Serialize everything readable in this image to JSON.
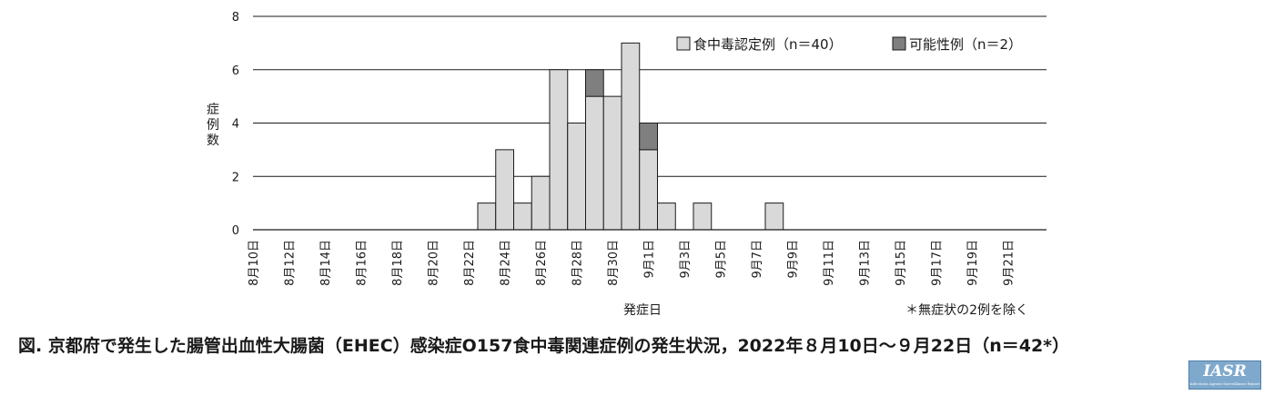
{
  "colors": {
    "confirmed": "#d9d9d9",
    "probable": "#7f7f7f",
    "border": "#1a1a1a",
    "grid": "#1a1a1a"
  },
  "chart_data": {
    "type": "bar",
    "stacked": true,
    "ylabel": "症例数",
    "xlabel": "発症日",
    "note": "＊無症状の2例を除く",
    "ylim": [
      0,
      8
    ],
    "yticks": [
      0,
      2,
      4,
      6,
      8
    ],
    "grid": true,
    "legend_position": "top-right",
    "categories": [
      "8月10日",
      "8月11日",
      "8月12日",
      "8月13日",
      "8月14日",
      "8月15日",
      "8月16日",
      "8月17日",
      "8月18日",
      "8月19日",
      "8月20日",
      "8月21日",
      "8月22日",
      "8月23日",
      "8月24日",
      "8月25日",
      "8月26日",
      "8月27日",
      "8月28日",
      "8月29日",
      "8月30日",
      "8月31日",
      "9月1日",
      "9月2日",
      "9月3日",
      "9月4日",
      "9月5日",
      "9月6日",
      "9月7日",
      "9月8日",
      "9月9日",
      "9月10日",
      "9月11日",
      "9月12日",
      "9月13日",
      "9月14日",
      "9月15日",
      "9月16日",
      "9月17日",
      "9月18日",
      "9月19日",
      "9月20日",
      "9月21日",
      "9月22日"
    ],
    "tick_labels": [
      "8月10日",
      "",
      "8月12日",
      "",
      "8月14日",
      "",
      "8月16日",
      "",
      "8月18日",
      "",
      "8月20日",
      "",
      "8月22日",
      "",
      "8月24日",
      "",
      "8月26日",
      "",
      "8月28日",
      "",
      "8月30日",
      "",
      "9月1日",
      "",
      "9月3日",
      "",
      "9月5日",
      "",
      "9月7日",
      "",
      "9月9日",
      "",
      "9月11日",
      "",
      "9月13日",
      "",
      "9月15日",
      "",
      "9月17日",
      "",
      "9月19日",
      "",
      "9月21日",
      ""
    ],
    "series": [
      {
        "name": "食中毒認定例（n＝40）",
        "values": [
          0,
          0,
          0,
          0,
          0,
          0,
          0,
          0,
          0,
          0,
          0,
          0,
          0,
          1,
          3,
          1,
          2,
          6,
          4,
          5,
          5,
          7,
          3,
          1,
          0,
          1,
          0,
          0,
          0,
          1,
          0,
          0,
          0,
          0,
          0,
          0,
          0,
          0,
          0,
          0,
          0,
          0,
          0,
          0
        ]
      },
      {
        "name": "可能性例（n＝2）",
        "values": [
          0,
          0,
          0,
          0,
          0,
          0,
          0,
          0,
          0,
          0,
          0,
          0,
          0,
          0,
          0,
          0,
          0,
          0,
          0,
          1,
          0,
          0,
          1,
          0,
          0,
          0,
          0,
          0,
          0,
          0,
          0,
          0,
          0,
          0,
          0,
          0,
          0,
          0,
          0,
          0,
          0,
          0,
          0,
          0
        ]
      }
    ]
  },
  "caption": "図. 京都府で発生した腸管出血性大腸菌（EHEC）感染症O157食中毒関連症例の発生状況，2022年８月10日〜９月22日（n＝42*）",
  "logo": {
    "text": "IASR",
    "subtext": "Infectious Agents Surveillance Report"
  }
}
